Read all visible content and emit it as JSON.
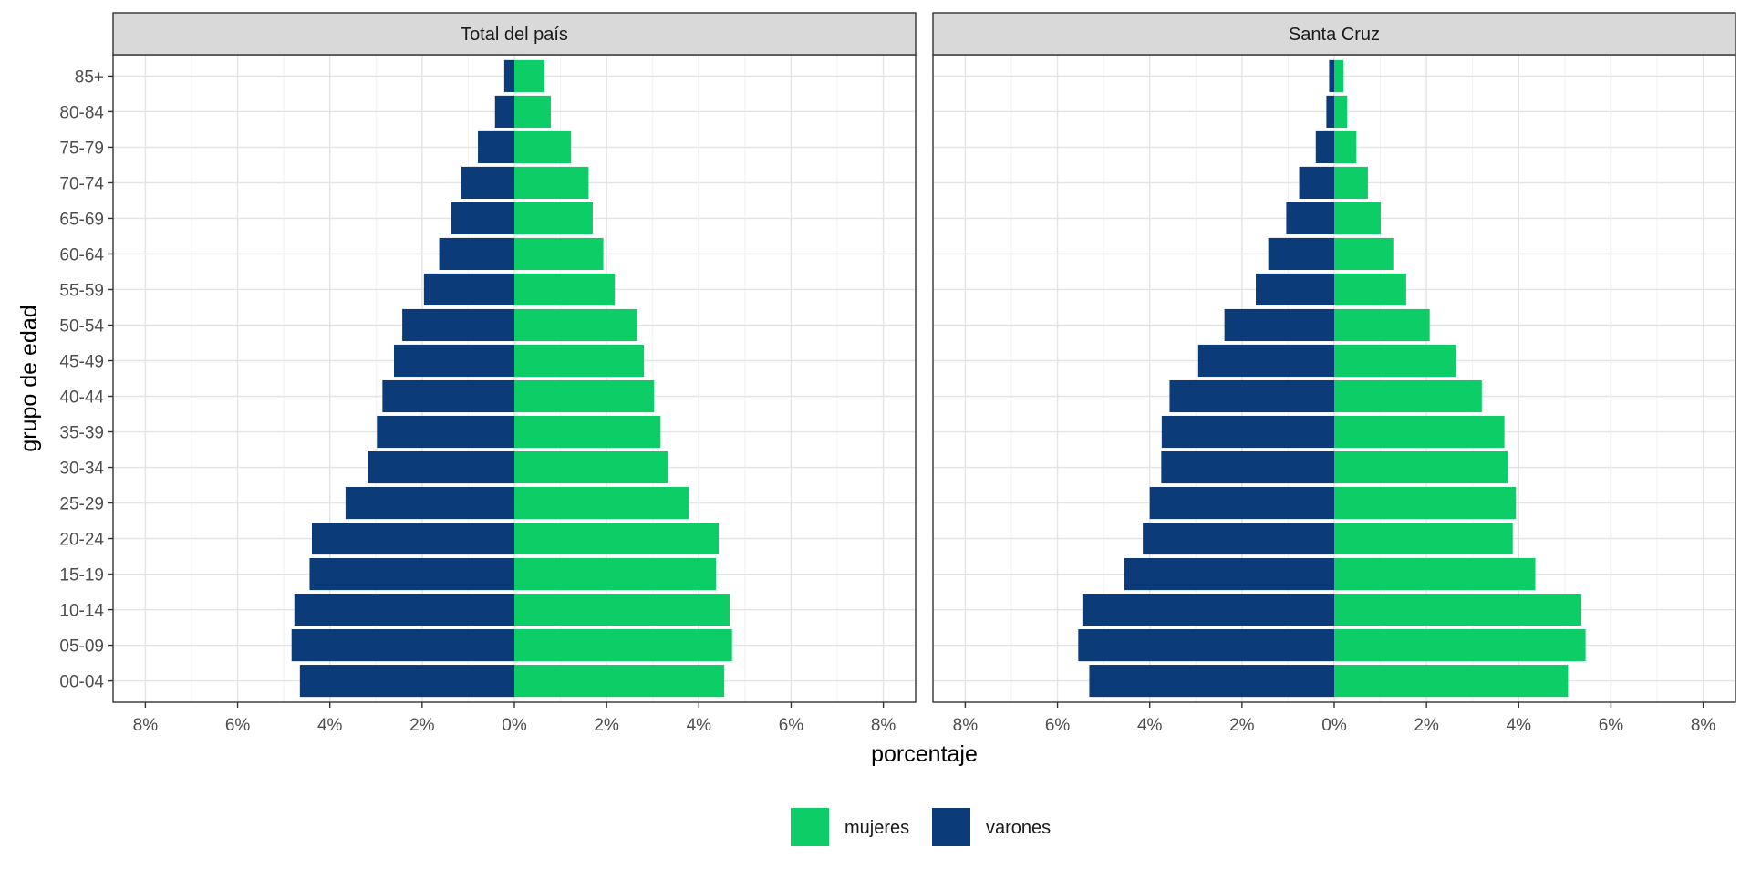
{
  "chart_data": {
    "type": "bar",
    "orientation": "horizontal",
    "subtype": "population-pyramid",
    "xlabel": "porcentaje",
    "ylabel": "grupo de edad",
    "categories": [
      "00-04",
      "05-09",
      "10-14",
      "15-19",
      "20-24",
      "25-29",
      "30-34",
      "35-39",
      "40-44",
      "45-49",
      "50-54",
      "55-59",
      "60-64",
      "65-69",
      "70-74",
      "75-79",
      "80-84",
      "85+"
    ],
    "x_ticks": [
      -8,
      -6,
      -4,
      -2,
      0,
      2,
      4,
      6,
      8
    ],
    "x_tick_labels": [
      "8%",
      "6%",
      "4%",
      "2%",
      "0%",
      "2%",
      "4%",
      "6%",
      "8%"
    ],
    "xlim": [
      -8.7,
      8.7
    ],
    "grid": true,
    "legend_position": "bottom",
    "legend": [
      {
        "name": "mujeres",
        "color": "#0ccd66"
      },
      {
        "name": "varones",
        "color": "#0b3b78"
      }
    ],
    "panels": [
      {
        "title": "Total del país",
        "series": [
          {
            "name": "mujeres",
            "color": "#0ccd66",
            "values": [
              4.55,
              4.72,
              4.67,
              4.37,
              4.43,
              3.78,
              3.33,
              3.17,
              3.03,
              2.81,
              2.66,
              2.18,
              1.93,
              1.7,
              1.61,
              1.23,
              0.79,
              0.65
            ]
          },
          {
            "name": "varones",
            "color": "#0b3b78",
            "values": [
              -4.65,
              -4.83,
              -4.77,
              -4.44,
              -4.39,
              -3.66,
              -3.18,
              -2.98,
              -2.86,
              -2.61,
              -2.43,
              -1.96,
              -1.63,
              -1.37,
              -1.15,
              -0.79,
              -0.42,
              -0.22
            ]
          }
        ]
      },
      {
        "title": "Santa Cruz",
        "series": [
          {
            "name": "mujeres",
            "color": "#0ccd66",
            "values": [
              5.07,
              5.45,
              5.36,
              4.36,
              3.87,
              3.94,
              3.76,
              3.69,
              3.2,
              2.64,
              2.07,
              1.56,
              1.28,
              1.01,
              0.73,
              0.48,
              0.28,
              0.2
            ]
          },
          {
            "name": "varones",
            "color": "#0b3b78",
            "values": [
              -5.31,
              -5.55,
              -5.46,
              -4.55,
              -4.15,
              -4.0,
              -3.75,
              -3.74,
              -3.57,
              -2.95,
              -2.38,
              -1.7,
              -1.43,
              -1.04,
              -0.76,
              -0.4,
              -0.17,
              -0.11
            ]
          }
        ]
      }
    ]
  }
}
